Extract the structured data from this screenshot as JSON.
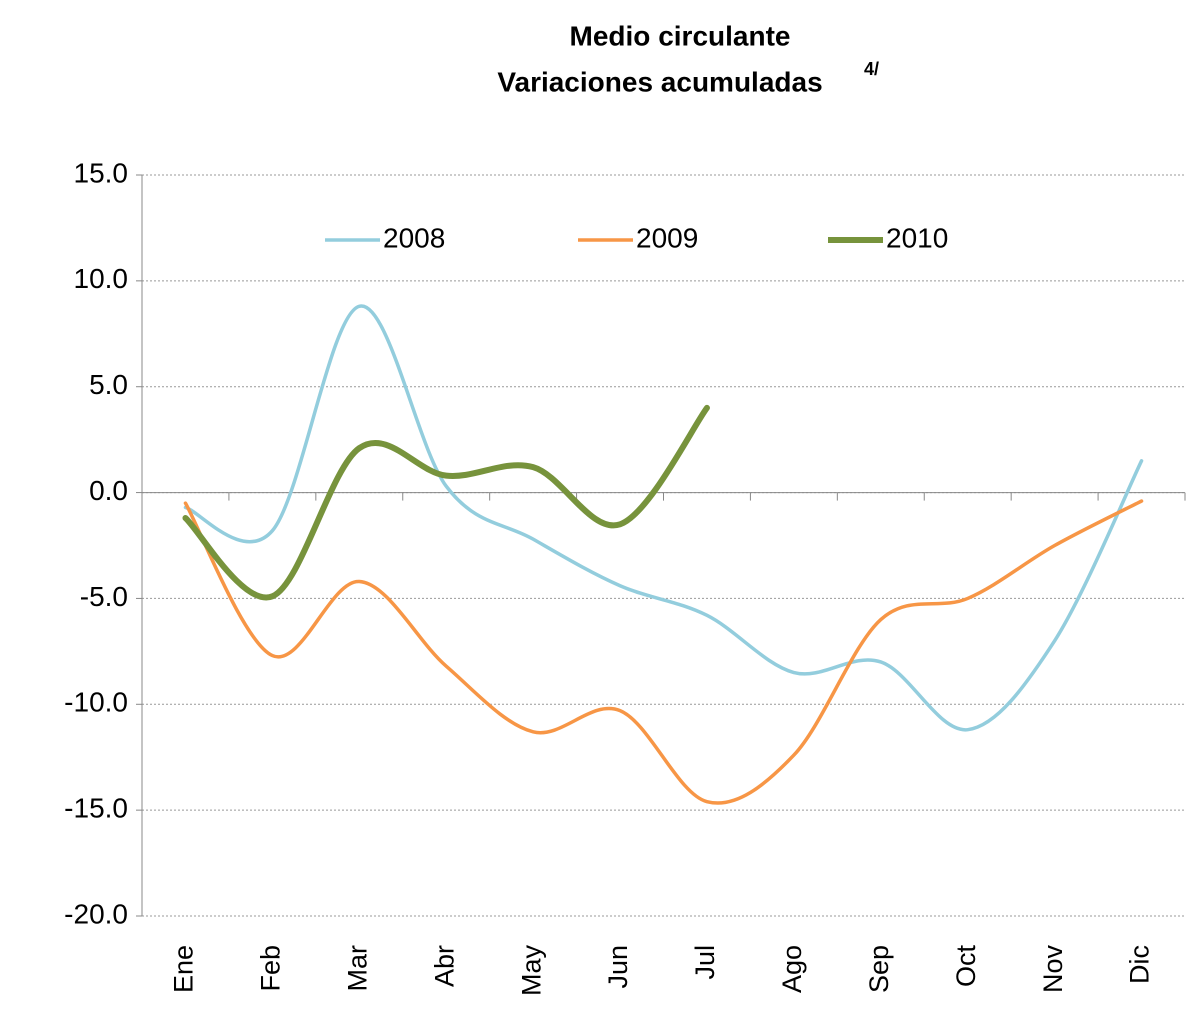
{
  "chart_data": {
    "type": "line",
    "title": "Medio circulante",
    "subtitle": "Variaciones acumuladas",
    "subtitle_note": "4/",
    "categories": [
      "Ene",
      "Feb",
      "Mar",
      "Abr",
      "May",
      "Jun",
      "Jul",
      "Ago",
      "Sep",
      "Oct",
      "Nov",
      "Dic"
    ],
    "series": [
      {
        "name": "2008",
        "color": "#93cddd",
        "values": [
          -0.7,
          -1.8,
          8.8,
          0.3,
          -2.2,
          -4.4,
          -5.8,
          -8.5,
          -8.0,
          -11.2,
          -7.0,
          1.5
        ]
      },
      {
        "name": "2009",
        "color": "#f79646",
        "values": [
          -0.5,
          -7.7,
          -4.2,
          -8.2,
          -11.3,
          -10.3,
          -14.6,
          -12.4,
          -6.0,
          -5.0,
          -2.5,
          -0.4
        ]
      },
      {
        "name": "2010",
        "color": "#77933c",
        "values": [
          -1.2,
          -4.9,
          2.1,
          0.8,
          1.2,
          -1.5,
          4.0,
          null,
          null,
          null,
          null,
          null
        ]
      }
    ],
    "ylim": [
      -20,
      15
    ],
    "yticks": [
      {
        "value": -20,
        "label": "-20.0"
      },
      {
        "value": -15,
        "label": "-15.0"
      },
      {
        "value": -10,
        "label": "-10.0"
      },
      {
        "value": -5,
        "label": "-5.0"
      },
      {
        "value": 0,
        "label": "0.0"
      },
      {
        "value": 5,
        "label": "5.0"
      },
      {
        "value": 10,
        "label": "10.0"
      },
      {
        "value": 15,
        "label": "15.0"
      }
    ],
    "grid": true,
    "legend": "top"
  }
}
